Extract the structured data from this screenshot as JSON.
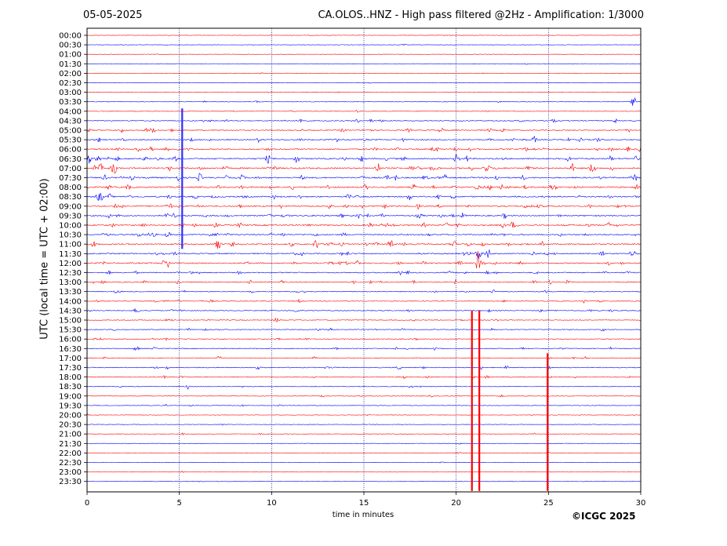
{
  "header": {
    "date": "05-05-2025",
    "title": "CA.OLOS..HNZ - High pass filtered @2Hz - Amplification: 1/3000"
  },
  "footer": {
    "copyright": "©ICGC 2025"
  },
  "colors": {
    "trace_even": "#ff0000",
    "trace_odd": "#0000ff",
    "grid": "#000080",
    "axes": "#000000"
  },
  "chart_data": {
    "type": "seismogram-helicorder",
    "title": "CA.OLOS..HNZ - High pass filtered @2Hz - Amplification: 1/3000",
    "date": "05-05-2025",
    "xlabel": "time in minutes",
    "ylabel": "UTC (local time = UTC + 02:00)",
    "xlim": [
      0,
      30
    ],
    "x_ticks": [
      "0",
      "5",
      "10",
      "15",
      "20",
      "25",
      "30"
    ],
    "vertical_grid_minutes": [
      5,
      10,
      15,
      20,
      25
    ],
    "row_labels": [
      "00:00",
      "00:30",
      "01:00",
      "01:30",
      "02:00",
      "02:30",
      "03:00",
      "03:30",
      "04:00",
      "04:30",
      "05:00",
      "05:30",
      "06:00",
      "06:30",
      "07:00",
      "07:30",
      "08:00",
      "08:30",
      "09:00",
      "09:30",
      "10:00",
      "10:30",
      "11:00",
      "11:30",
      "12:00",
      "12:30",
      "13:00",
      "13:30",
      "14:00",
      "14:30",
      "15:00",
      "15:30",
      "16:00",
      "16:30",
      "17:00",
      "17:30",
      "18:00",
      "18:30",
      "19:00",
      "19:30",
      "20:00",
      "20:30",
      "21:00",
      "21:30",
      "22:00",
      "22:30",
      "23:00",
      "23:30"
    ],
    "row_activity": [
      0.05,
      0.03,
      0.03,
      0.03,
      0.06,
      0.03,
      0.08,
      0.12,
      0.15,
      0.45,
      0.55,
      0.65,
      0.75,
      0.9,
      0.95,
      0.85,
      0.85,
      0.8,
      0.8,
      0.75,
      0.8,
      0.75,
      0.85,
      0.7,
      0.7,
      0.55,
      0.5,
      0.35,
      0.35,
      0.4,
      0.3,
      0.35,
      0.3,
      0.35,
      0.3,
      0.4,
      0.35,
      0.2,
      0.15,
      0.15,
      0.08,
      0.05,
      0.1,
      0.04,
      0.08,
      0.05,
      0.04,
      0.03
    ],
    "large_events": [
      {
        "row": 22,
        "minute": 12.4,
        "amp": 0.8
      },
      {
        "row": 23,
        "minute": 21.2,
        "amp": 0.9
      },
      {
        "row": 24,
        "minute": 21.2,
        "amp": 1.6
      },
      {
        "row": 24,
        "minute": 4.4,
        "amp": 0.6
      },
      {
        "row": 13,
        "minute": 9.8,
        "amp": 0.6
      },
      {
        "row": 9,
        "minute": 11.6,
        "amp": 0.5
      },
      {
        "row": 7,
        "minute": 29.6,
        "amp": 0.8
      },
      {
        "row": 14,
        "minute": 1.5,
        "amp": 0.6
      }
    ],
    "vertical_spikes": [
      {
        "minute": 5.15,
        "from_row": 7.7,
        "to_row": 22.5,
        "color": "#3030ff"
      },
      {
        "minute": 20.85,
        "from_row": 29.0,
        "to_row": 48.0,
        "color": "#ff0000"
      },
      {
        "minute": 21.25,
        "from_row": 29.0,
        "to_row": 48.0,
        "color": "#ff0000"
      },
      {
        "minute": 24.95,
        "from_row": 33.5,
        "to_row": 48.0,
        "color": "#ff0000"
      }
    ]
  }
}
